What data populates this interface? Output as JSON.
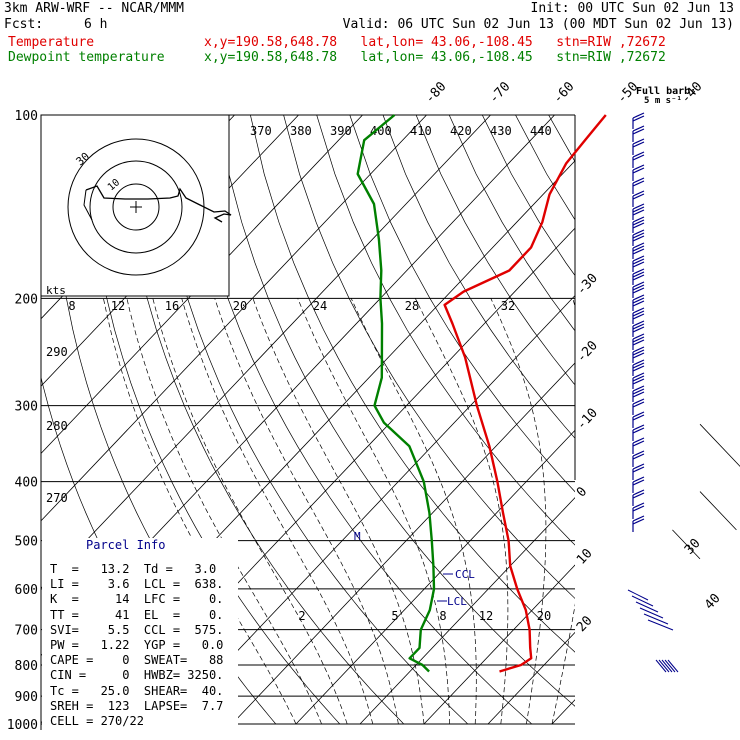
{
  "header": {
    "model": "3km ARW-WRF -- NCAR/MMM",
    "init": "Init: 00 UTC Sun 02 Jun 13",
    "fcst_label": "Fcst:",
    "fcst_value": "6 h",
    "valid": "Valid: 06 UTC Sun 02 Jun 13 (00 MDT Sun 02 Jun 13)",
    "temperature_label": "Temperature",
    "dewpoint_label": "Dewpoint temperature",
    "location_line": "x,y=190.58,648.78   lat,lon= 43.06,-108.45   stn=RIW ,72672",
    "temp_color": "#e00000",
    "dewpoint_color": "#008000"
  },
  "barb_legend": {
    "title": "Full barb:",
    "units": "5 m s⁻¹"
  },
  "markers": {
    "ccl": "CCL",
    "lcl": "LCL",
    "m": "M"
  },
  "hodograph": {
    "units": "kts",
    "ring_label_outer": "30",
    "ring_label_inner": "10"
  },
  "parcel_info": {
    "title": "Parcel Info",
    "rows": [
      "T  =   13.2  Td =   3.0",
      "LI =    3.6  LCL =  638.",
      "K  =     14  LFC =    0.",
      "TT =     41  EL  =    0.",
      "SVI=    5.5  CCL =  575.",
      "PW =   1.22  YGP =   0.0",
      "CAPE =    0  SWEAT=   88",
      "CIN =     0  HWBZ= 3250.",
      "Tc =   25.0  SHEAR=  40.",
      "SREH =  123  LAPSE=  7.7",
      "CELL = 270/22"
    ]
  },
  "chart_data": {
    "type": "line",
    "subtype": "skew-T log-P diagram",
    "y_axis": {
      "scale": "log",
      "range": [
        1000,
        100
      ],
      "pressure_levels": [
        100,
        200,
        300,
        400,
        500,
        600,
        700,
        800,
        900,
        1000
      ]
    },
    "isotherm_labels": [
      -80,
      -70,
      -60,
      -50,
      -40,
      -30,
      -20,
      -10,
      0,
      10,
      20,
      30,
      40
    ],
    "theta_e_labels": [
      370,
      380,
      390,
      400,
      410,
      420,
      430,
      440
    ],
    "theta_labels": [
      290,
      280,
      270
    ],
    "mixing_ratio_labels_upper": [
      8,
      12,
      16,
      20,
      24,
      28,
      32
    ],
    "mixing_ratio_labels_lower": [
      2,
      5,
      8,
      12,
      20
    ],
    "series": [
      {
        "name": "Temperature",
        "color": "#e00000",
        "points": [
          {
            "p": 820,
            "t": 14.0
          },
          {
            "p": 800,
            "t": 16.4
          },
          {
            "p": 780,
            "t": 17.0
          },
          {
            "p": 750,
            "t": 15.3
          },
          {
            "p": 700,
            "t": 12.5
          },
          {
            "p": 650,
            "t": 9.0
          },
          {
            "p": 600,
            "t": 4.5
          },
          {
            "p": 550,
            "t": 0.0
          },
          {
            "p": 500,
            "t": -4.0
          },
          {
            "p": 450,
            "t": -9.0
          },
          {
            "p": 400,
            "t": -14.5
          },
          {
            "p": 350,
            "t": -21.0
          },
          {
            "p": 300,
            "t": -29.0
          },
          {
            "p": 250,
            "t": -38.0
          },
          {
            "p": 220,
            "t": -45.0
          },
          {
            "p": 205,
            "t": -49.0
          },
          {
            "p": 195,
            "t": -48.0
          },
          {
            "p": 180,
            "t": -44.0
          },
          {
            "p": 165,
            "t": -44.0
          },
          {
            "p": 150,
            "t": -46.0
          },
          {
            "p": 135,
            "t": -49.0
          },
          {
            "p": 120,
            "t": -51.0
          },
          {
            "p": 110,
            "t": -51.5
          },
          {
            "p": 100,
            "t": -52.0
          }
        ]
      },
      {
        "name": "Dewpoint temperature",
        "color": "#008000",
        "points": [
          {
            "p": 820,
            "t": 3.0
          },
          {
            "p": 800,
            "t": 1.0
          },
          {
            "p": 780,
            "t": -2.0
          },
          {
            "p": 750,
            "t": -2.0
          },
          {
            "p": 700,
            "t": -4.5
          },
          {
            "p": 650,
            "t": -6.0
          },
          {
            "p": 600,
            "t": -8.5
          },
          {
            "p": 550,
            "t": -12.0
          },
          {
            "p": 500,
            "t": -16.0
          },
          {
            "p": 450,
            "t": -20.5
          },
          {
            "p": 400,
            "t": -26.0
          },
          {
            "p": 350,
            "t": -33.5
          },
          {
            "p": 320,
            "t": -41.0
          },
          {
            "p": 300,
            "t": -45.0
          },
          {
            "p": 270,
            "t": -48.0
          },
          {
            "p": 250,
            "t": -51.0
          },
          {
            "p": 220,
            "t": -56.0
          },
          {
            "p": 200,
            "t": -60.0
          },
          {
            "p": 180,
            "t": -64.0
          },
          {
            "p": 160,
            "t": -69.0
          },
          {
            "p": 140,
            "t": -75.0
          },
          {
            "p": 125,
            "t": -82.0
          },
          {
            "p": 110,
            "t": -86.0
          },
          {
            "p": 100,
            "t": -85.0
          }
        ]
      }
    ]
  }
}
